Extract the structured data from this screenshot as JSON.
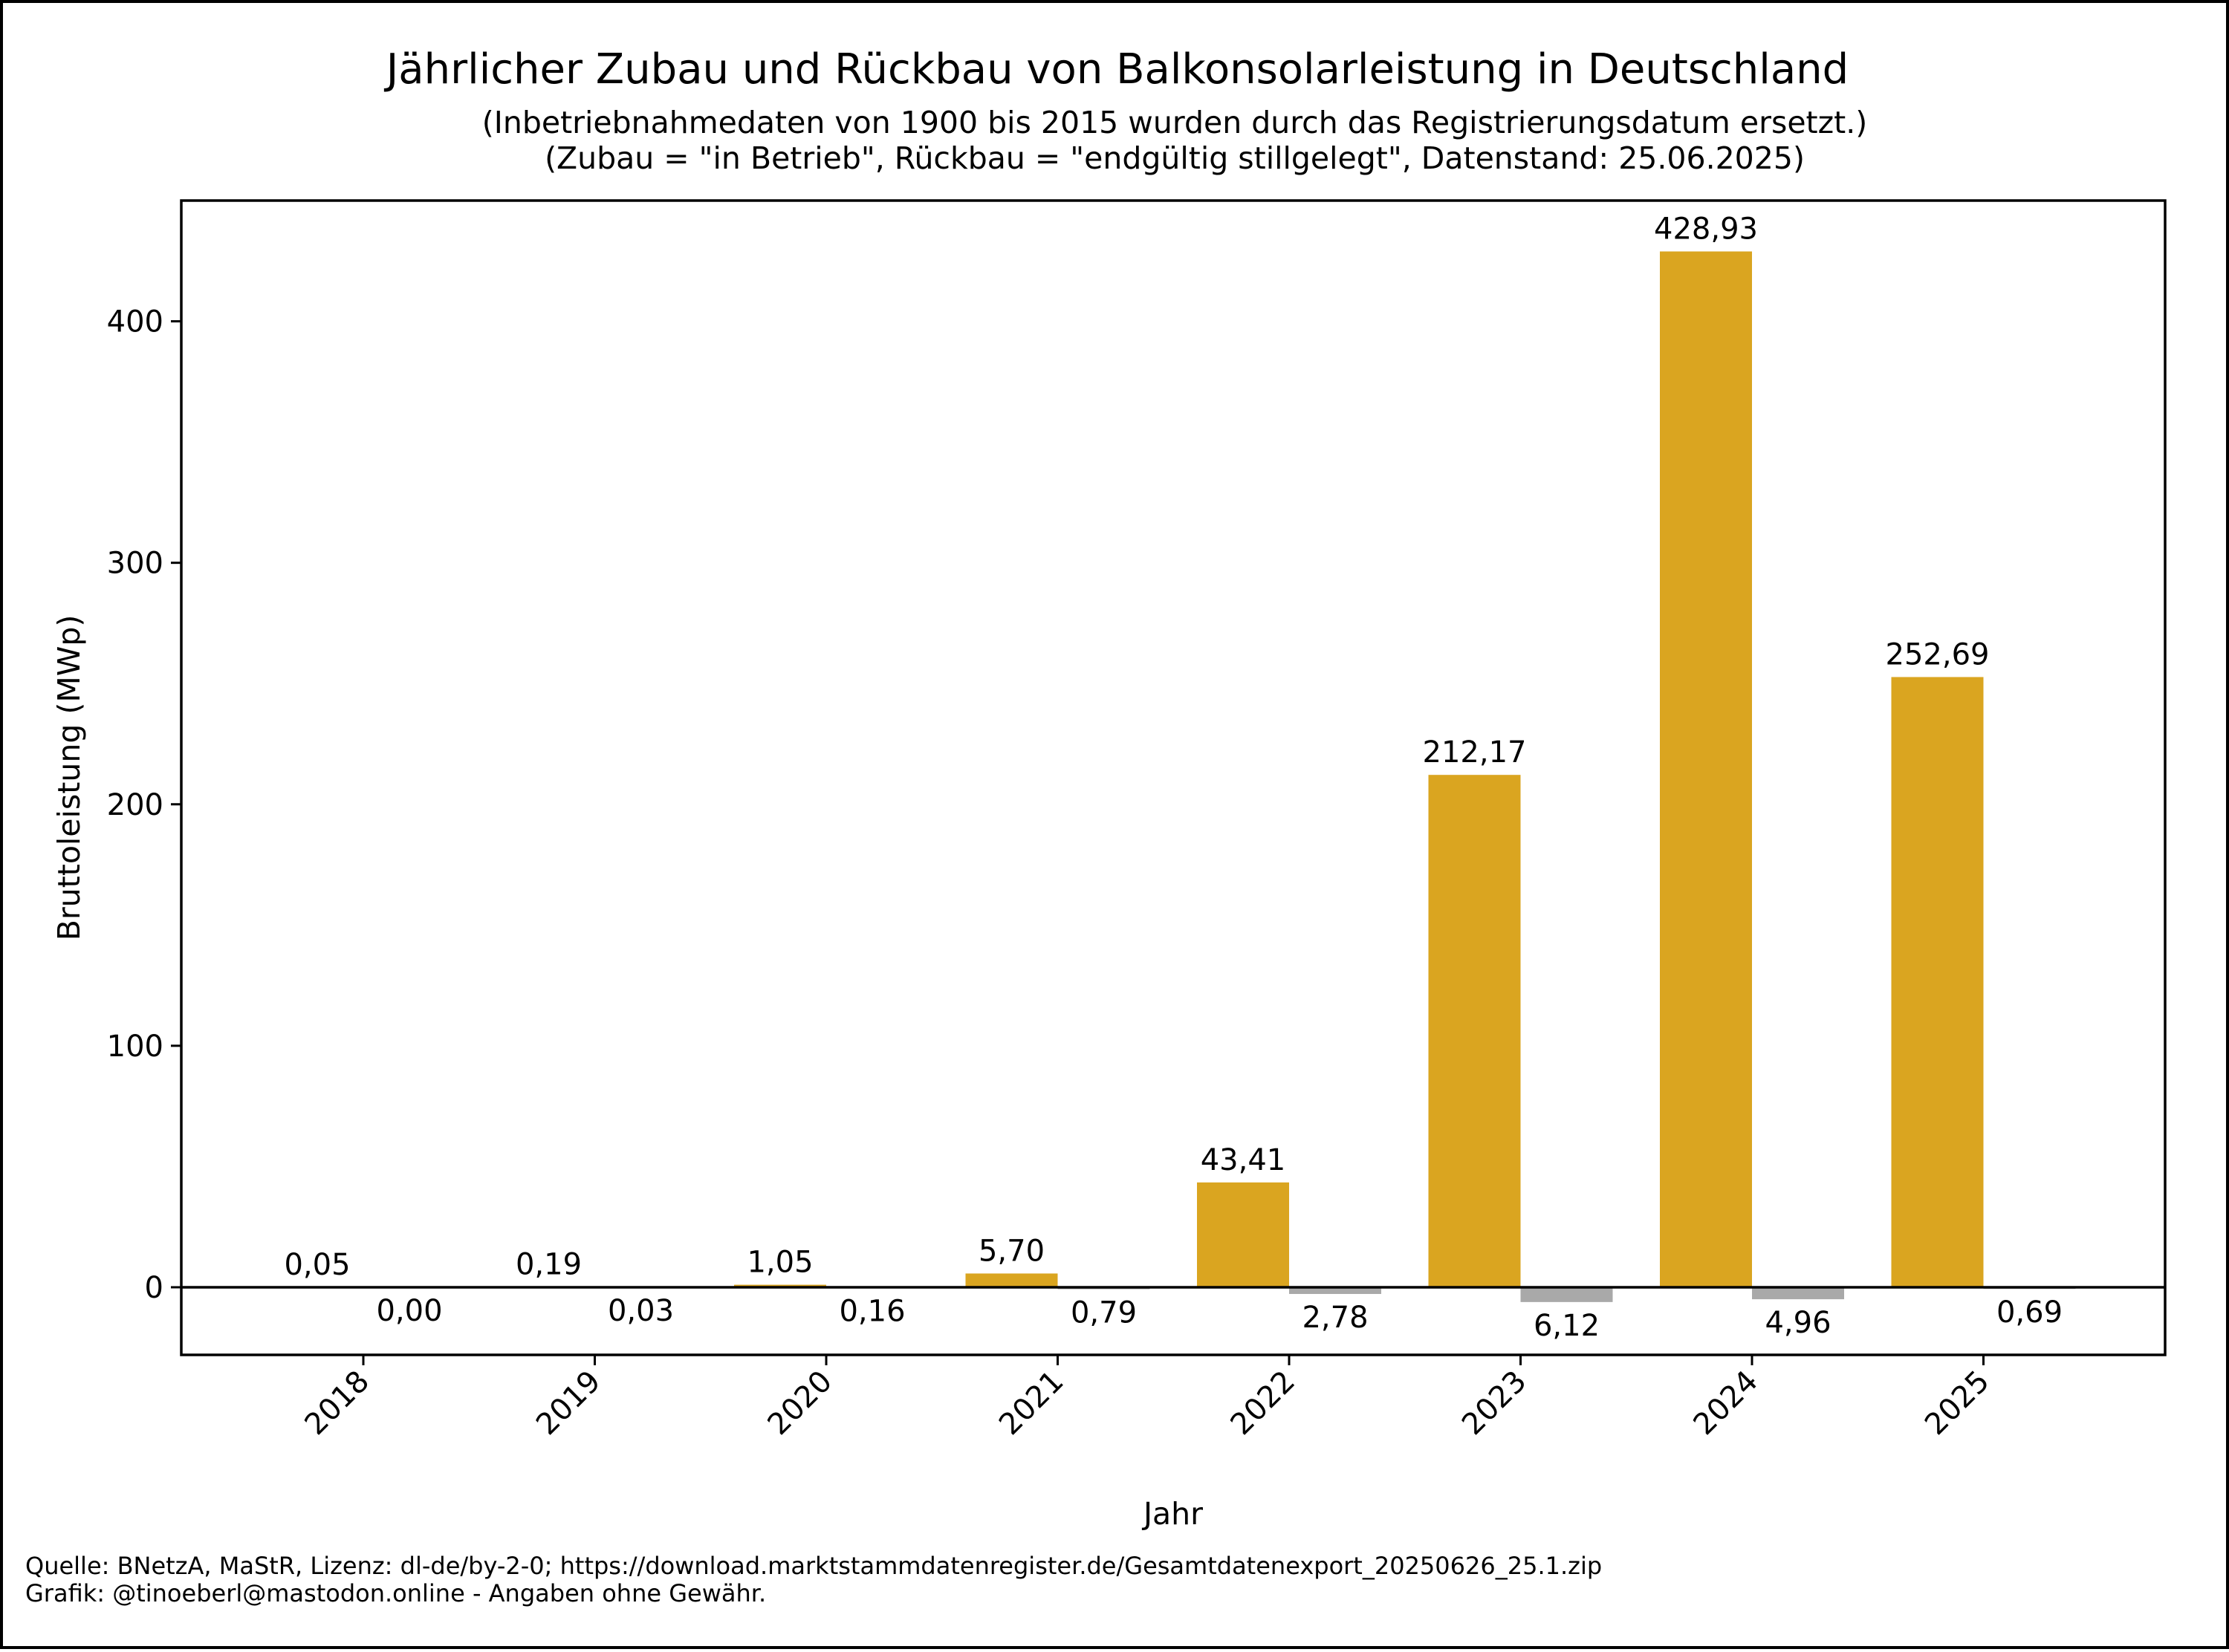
{
  "chart_data": {
    "type": "bar",
    "title": "Jährlicher Zubau und Rückbau von Balkonsolarleistung in Deutschland",
    "subtitle_lines": [
      "(Inbetriebnahmedaten von 1900 bis 2015 wurden durch das Registrierungsdatum ersetzt.)",
      "(Zubau = \"in Betrieb\", Rückbau = \"endgültig stillgelegt\", Datenstand: 25.06.2025)"
    ],
    "xlabel": "Jahr",
    "ylabel": "Bruttoleistung (MWp)",
    "categories": [
      "2018",
      "2019",
      "2020",
      "2021",
      "2022",
      "2023",
      "2024",
      "2025"
    ],
    "series": [
      {
        "color": "#DAA520",
        "values": [
          0.05,
          0.19,
          1.05,
          5.7,
          43.41,
          212.17,
          428.93,
          252.69
        ],
        "labels": [
          "0,05",
          "0,19",
          "1,05",
          "5,70",
          "43,41",
          "212,17",
          "428,93",
          "252,69"
        ]
      },
      {
        "color": "#A9A9A9",
        "values": [
          0.0,
          -0.03,
          -0.16,
          -0.79,
          -2.78,
          -6.12,
          -4.96,
          -0.69
        ],
        "labels": [
          "0,00",
          "0,03",
          "0,16",
          "0,79",
          "2,78",
          "6,12",
          "4,96",
          "0,69"
        ]
      }
    ],
    "yticks": [
      0,
      100,
      200,
      300,
      400
    ],
    "ylim": [
      -28,
      450
    ],
    "grid": false,
    "legend": "none",
    "zero_line": true
  },
  "footer": {
    "line1": "Quelle: BNetzA, MaStR, Lizenz: dl-de/by-2-0; https://download.marktstammdatenregister.de/Gesamtdatenexport_20250626_25.1.zip",
    "line2": "Grafik: @tinoeberl@mastodon.online - Angaben ohne Gewähr."
  }
}
